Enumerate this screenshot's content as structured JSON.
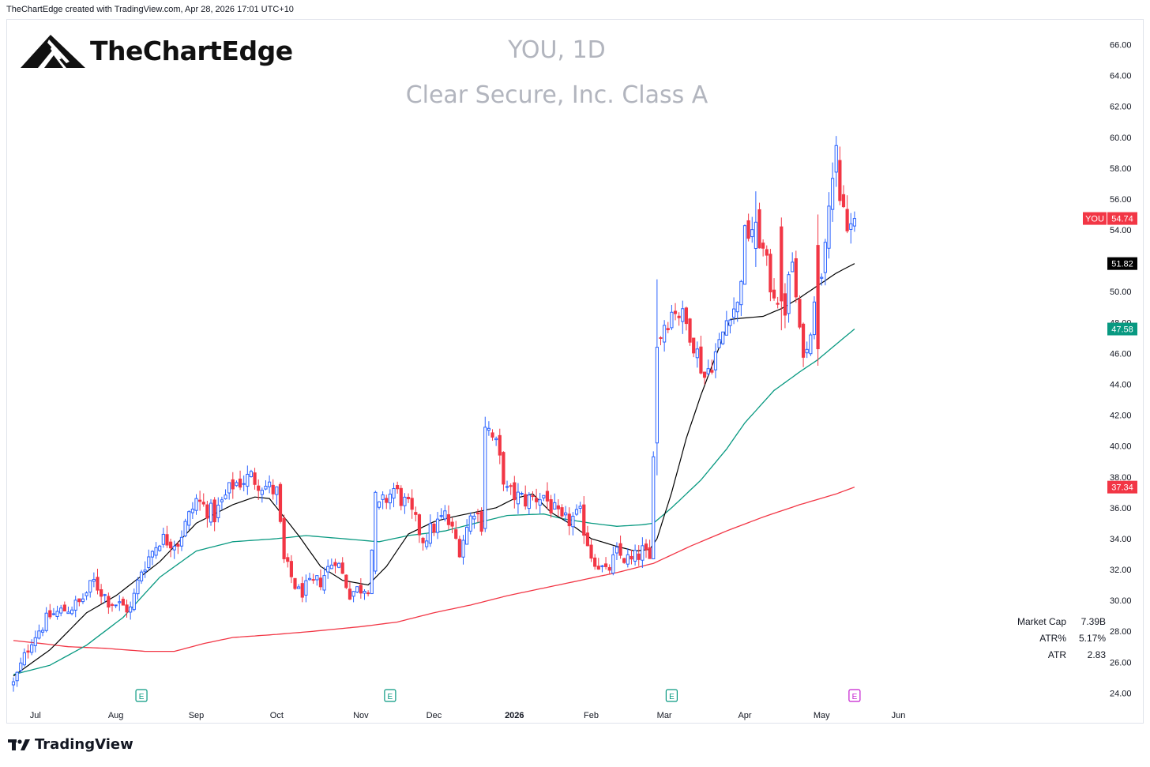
{
  "credit": "TheChartEdge created with TradingView.com, Apr 28, 2026 17:01 UTC+10",
  "brand": {
    "name": "TheChartEdge",
    "icon": "mountain-logo-icon"
  },
  "footer": {
    "name": "TradingView",
    "icon": "tradingview-logo-icon"
  },
  "stats": [
    {
      "label": "Market Cap",
      "value": "7.39B"
    },
    {
      "label": "ATR%",
      "value": "5.17%"
    },
    {
      "label": "ATR",
      "value": "2.83"
    }
  ],
  "colors": {
    "up": "#2962ff",
    "down": "#f23645",
    "sma20": "#000000",
    "sma50": "#089981",
    "sma200": "#f23645",
    "title": "#b2b5be"
  },
  "chart_data": {
    "type": "candlestick",
    "title": "YOU, 1D",
    "subtitle": "Clear Secure, Inc. Class A",
    "ylim": [
      23.2,
      67
    ],
    "yticks": [
      "24.00",
      "26.00",
      "28.00",
      "30.00",
      "32.00",
      "34.00",
      "36.00",
      "38.00",
      "40.00",
      "42.00",
      "44.00",
      "46.00",
      "48.00",
      "50.00",
      "52.00",
      "54.00",
      "56.00",
      "58.00",
      "60.00",
      "62.00",
      "64.00",
      "66.00"
    ],
    "x_labels": [
      {
        "label": "Jul",
        "day": 6
      },
      {
        "label": "Aug",
        "day": 28
      },
      {
        "label": "Sep",
        "day": 50
      },
      {
        "label": "Oct",
        "day": 72
      },
      {
        "label": "Nov",
        "day": 95
      },
      {
        "label": "Dec",
        "day": 115
      },
      {
        "label": "2026",
        "day": 137,
        "bold": true
      },
      {
        "label": "Feb",
        "day": 158
      },
      {
        "label": "Mar",
        "day": 178
      },
      {
        "label": "Apr",
        "day": 200
      },
      {
        "label": "May",
        "day": 221
      },
      {
        "label": "Jun",
        "day": 242
      }
    ],
    "earnings_markers": [
      {
        "day": 35,
        "label": "E",
        "color": "#089981"
      },
      {
        "day": 103,
        "label": "E",
        "color": "#089981"
      },
      {
        "day": 180,
        "label": "E",
        "color": "#089981"
      },
      {
        "day": 230,
        "label": "E",
        "color": "#c51fcf"
      }
    ],
    "last_price": {
      "symbol": "YOU",
      "value": "54.74",
      "price": 54.74
    },
    "ma_badges": [
      {
        "value": "51.82",
        "price": 51.82,
        "bg": "#000000"
      },
      {
        "value": "47.58",
        "price": 47.58,
        "bg": "#089981"
      },
      {
        "value": "37.34",
        "price": 37.34,
        "bg": "#f23645"
      }
    ],
    "key_closes": [
      [
        0,
        24.6
      ],
      [
        5,
        27.5
      ],
      [
        10,
        29.0
      ],
      [
        18,
        29.8
      ],
      [
        22,
        31.2
      ],
      [
        26,
        30.0
      ],
      [
        32,
        29.4
      ],
      [
        35,
        32.0
      ],
      [
        40,
        34.0
      ],
      [
        45,
        33.8
      ],
      [
        50,
        36.5
      ],
      [
        55,
        35.5
      ],
      [
        60,
        37.5
      ],
      [
        65,
        38.0
      ],
      [
        69,
        37.4
      ],
      [
        72,
        37.0
      ],
      [
        74,
        32.5
      ],
      [
        78,
        30.5
      ],
      [
        84,
        31.3
      ],
      [
        88,
        32.8
      ],
      [
        92,
        30.5
      ],
      [
        97,
        31.0
      ],
      [
        99,
        35.7
      ],
      [
        104,
        37.2
      ],
      [
        108,
        36.0
      ],
      [
        112,
        34.0
      ],
      [
        118,
        35.5
      ],
      [
        122,
        33.4
      ],
      [
        126,
        36.0
      ],
      [
        128,
        35.0
      ],
      [
        129,
        41.5
      ],
      [
        132,
        40.0
      ],
      [
        135,
        37.0
      ],
      [
        140,
        36.5
      ],
      [
        145,
        36.8
      ],
      [
        150,
        35.0
      ],
      [
        155,
        35.5
      ],
      [
        158,
        33.0
      ],
      [
        162,
        31.7
      ],
      [
        165,
        33.0
      ],
      [
        169,
        32.5
      ],
      [
        172,
        33.2
      ],
      [
        174,
        32.5
      ],
      [
        175,
        40.0
      ],
      [
        176,
        46.7
      ],
      [
        178,
        48.0
      ],
      [
        181,
        49.0
      ],
      [
        185,
        47.5
      ],
      [
        189,
        44.5
      ],
      [
        193,
        46.5
      ],
      [
        196,
        49.0
      ],
      [
        198,
        49.0
      ],
      [
        200,
        53.5
      ],
      [
        203,
        54.5
      ],
      [
        207,
        50.5
      ],
      [
        211,
        49.0
      ],
      [
        213,
        52.0
      ],
      [
        215,
        47.0
      ],
      [
        217,
        46.0
      ],
      [
        219,
        50.0
      ],
      [
        221,
        51.5
      ],
      [
        223,
        56.5
      ],
      [
        225,
        58.5
      ],
      [
        226,
        56.0
      ],
      [
        227,
        55.5
      ],
      [
        228,
        53.8
      ],
      [
        230,
        54.74
      ]
    ],
    "big_bars": [
      {
        "day": 99,
        "o": 31.9,
        "h": 37.1,
        "l": 31.7,
        "c": 37.0
      },
      {
        "day": 176,
        "o": 40.2,
        "h": 50.8,
        "l": 38.1,
        "c": 46.4
      },
      {
        "day": 203,
        "o": 52.8,
        "h": 56.5,
        "l": 51.6,
        "c": 54.5
      },
      {
        "day": 210,
        "o": 54.2,
        "h": 54.8,
        "l": 47.5,
        "c": 49.4
      },
      {
        "day": 220,
        "o": 53.0,
        "h": 55.0,
        "l": 45.2,
        "c": 46.3
      },
      {
        "day": 226,
        "o": 58.5,
        "h": 59.4,
        "l": 55.6,
        "c": 55.9
      }
    ],
    "sma20_key": [
      [
        0,
        25.1
      ],
      [
        10,
        26.8
      ],
      [
        20,
        29.2
      ],
      [
        28,
        30.3
      ],
      [
        40,
        32.5
      ],
      [
        50,
        35.0
      ],
      [
        60,
        36.2
      ],
      [
        66,
        36.7
      ],
      [
        70,
        36.6
      ],
      [
        78,
        34.2
      ],
      [
        84,
        32.2
      ],
      [
        90,
        31.3
      ],
      [
        97,
        31.0
      ],
      [
        102,
        32.2
      ],
      [
        108,
        34.3
      ],
      [
        115,
        35.1
      ],
      [
        120,
        35.4
      ],
      [
        128,
        35.8
      ],
      [
        132,
        36.0
      ],
      [
        137,
        36.6
      ],
      [
        142,
        36.9
      ],
      [
        147,
        35.7
      ],
      [
        152,
        35.0
      ],
      [
        158,
        34.0
      ],
      [
        165,
        33.5
      ],
      [
        170,
        33.2
      ],
      [
        174,
        33.3
      ],
      [
        176,
        34.0
      ],
      [
        180,
        37.0
      ],
      [
        184,
        40.5
      ],
      [
        188,
        43.3
      ],
      [
        192,
        45.8
      ],
      [
        196,
        48.2
      ],
      [
        200,
        48.3
      ],
      [
        205,
        48.4
      ],
      [
        210,
        48.9
      ],
      [
        215,
        49.6
      ],
      [
        220,
        50.4
      ],
      [
        225,
        51.2
      ],
      [
        230,
        51.82
      ]
    ],
    "sma50_key": [
      [
        0,
        25.2
      ],
      [
        10,
        25.8
      ],
      [
        20,
        27.1
      ],
      [
        30,
        28.9
      ],
      [
        40,
        31.5
      ],
      [
        50,
        33.2
      ],
      [
        60,
        33.8
      ],
      [
        72,
        34.0
      ],
      [
        80,
        34.2
      ],
      [
        90,
        34.0
      ],
      [
        100,
        33.8
      ],
      [
        108,
        34.2
      ],
      [
        118,
        34.5
      ],
      [
        128,
        35.1
      ],
      [
        135,
        35.5
      ],
      [
        145,
        35.6
      ],
      [
        150,
        35.3
      ],
      [
        158,
        35.0
      ],
      [
        165,
        34.8
      ],
      [
        172,
        34.9
      ],
      [
        175,
        35.0
      ],
      [
        180,
        36.0
      ],
      [
        188,
        37.8
      ],
      [
        195,
        39.8
      ],
      [
        200,
        41.5
      ],
      [
        208,
        43.6
      ],
      [
        215,
        44.8
      ],
      [
        220,
        45.6
      ],
      [
        225,
        46.6
      ],
      [
        230,
        47.58
      ]
    ],
    "sma200_key": [
      [
        0,
        27.4
      ],
      [
        8,
        27.2
      ],
      [
        15,
        27.0
      ],
      [
        25,
        26.9
      ],
      [
        36,
        26.7
      ],
      [
        44,
        26.7
      ],
      [
        52,
        27.2
      ],
      [
        60,
        27.6
      ],
      [
        72,
        27.8
      ],
      [
        82,
        28.0
      ],
      [
        95,
        28.3
      ],
      [
        105,
        28.6
      ],
      [
        115,
        29.2
      ],
      [
        125,
        29.7
      ],
      [
        135,
        30.3
      ],
      [
        145,
        30.8
      ],
      [
        155,
        31.3
      ],
      [
        165,
        31.8
      ],
      [
        175,
        32.4
      ],
      [
        185,
        33.5
      ],
      [
        195,
        34.5
      ],
      [
        205,
        35.4
      ],
      [
        215,
        36.2
      ],
      [
        225,
        36.9
      ],
      [
        230,
        37.34
      ]
    ]
  }
}
